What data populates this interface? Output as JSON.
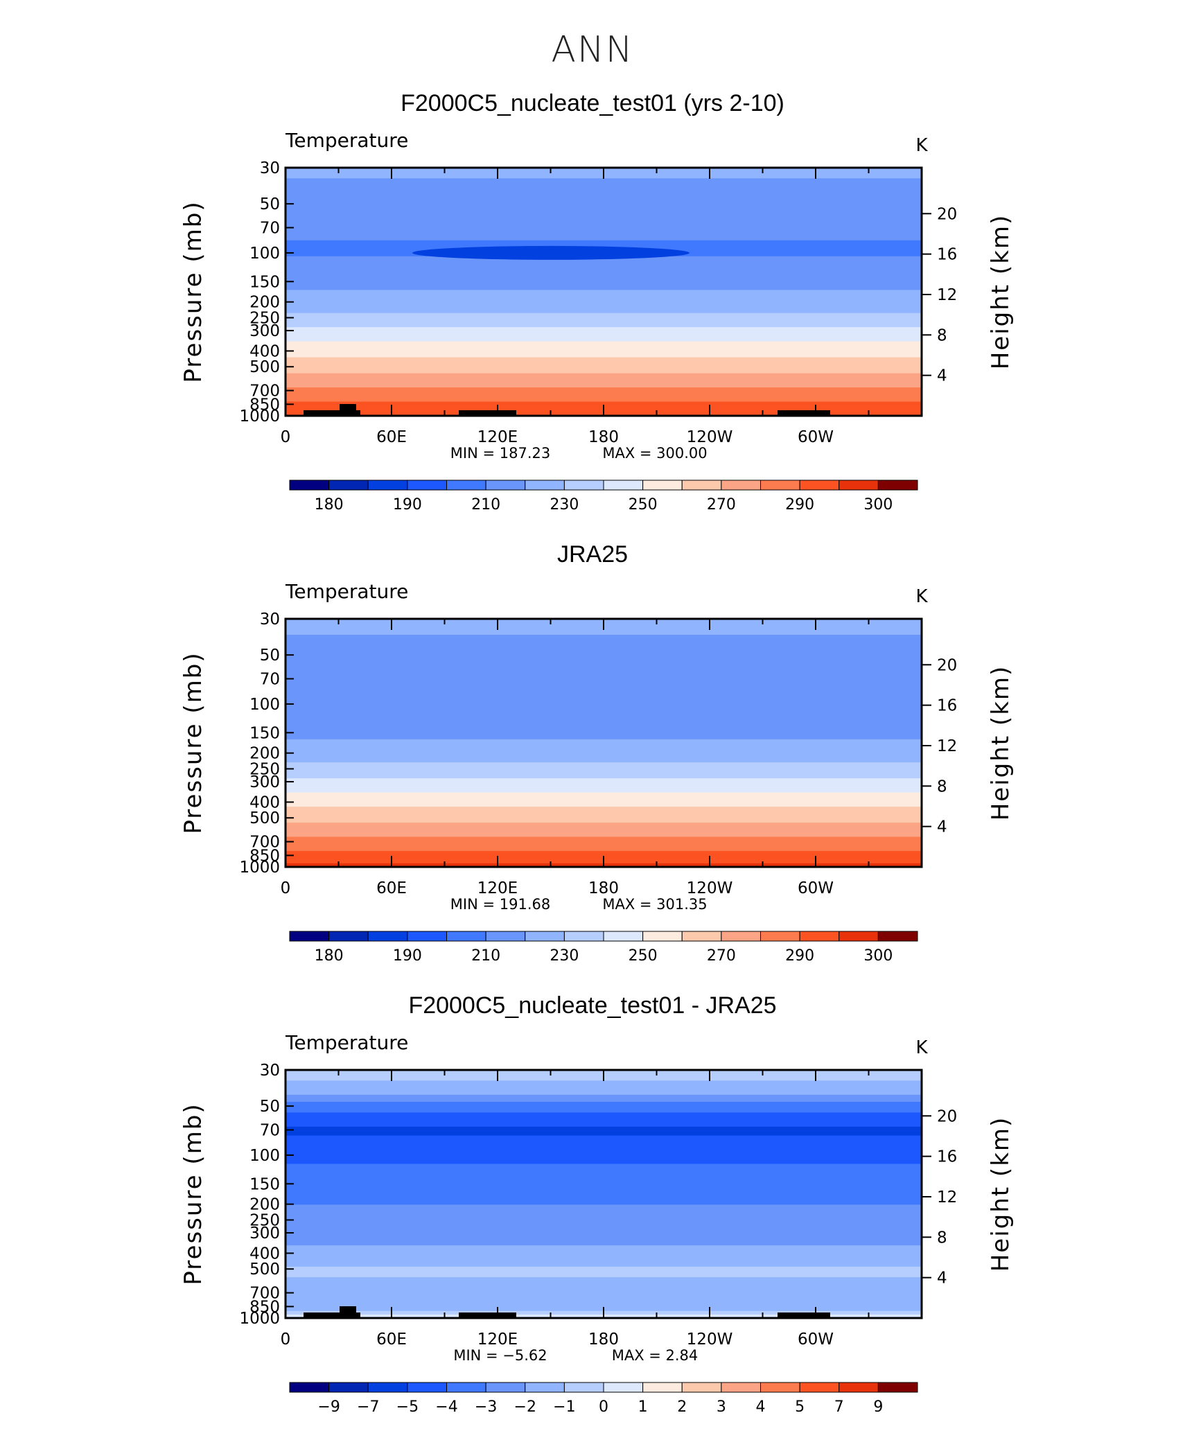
{
  "figure": {
    "title": "ANN"
  },
  "colors": [
    "#000080",
    "#0026b3",
    "#0340e0",
    "#1c58fe",
    "#4078fe",
    "#6a96fc",
    "#91b4fe",
    "#b5cefd",
    "#dde8fd",
    "#fdebdf",
    "#fdc9ad",
    "#fca586",
    "#fd7c4f",
    "#fc5323",
    "#e8320c",
    "#c61e06",
    "#a00d02",
    "#7f0000"
  ],
  "chart_data": [
    {
      "type": "heatmap",
      "title": "F2000C5_nucleate_test01 (yrs 2-10)",
      "variable": "Temperature",
      "units": "K",
      "ylabel": "Pressure (mb)",
      "y2label": "Height (km)",
      "y_ticks": [
        "30",
        "50",
        "70",
        "100",
        "150",
        "200",
        "250",
        "300",
        "400",
        "500",
        "700",
        "850",
        "1000"
      ],
      "y2_ticks": [
        "20",
        "16",
        "12",
        "8",
        "4"
      ],
      "x_ticks": [
        "0",
        "60E",
        "120E",
        "180",
        "120W",
        "60W"
      ],
      "min_label": "MIN = 187.23",
      "max_label": "MAX = 300.00",
      "min": 187.23,
      "max": 300.0,
      "colorbar_labels": [
        "180",
        "190",
        "210",
        "230",
        "250",
        "270",
        "290",
        "300"
      ],
      "levels": [
        {
          "p": 30,
          "v": 212
        },
        {
          "p": 40,
          "v": 208
        },
        {
          "p": 60,
          "v": 202
        },
        {
          "p": 100,
          "v": 199
        },
        {
          "p": 150,
          "v": 207
        },
        {
          "p": 200,
          "v": 214
        },
        {
          "p": 250,
          "v": 222
        },
        {
          "p": 300,
          "v": 232
        },
        {
          "p": 400,
          "v": 246
        },
        {
          "p": 500,
          "v": 256
        },
        {
          "p": 700,
          "v": 272
        },
        {
          "p": 850,
          "v": 282
        },
        {
          "p": 1000,
          "v": 290
        }
      ]
    },
    {
      "type": "heatmap",
      "title": "JRA25",
      "variable": "Temperature",
      "units": "K",
      "ylabel": "Pressure (mb)",
      "y2label": "Height (km)",
      "y_ticks": [
        "30",
        "50",
        "70",
        "100",
        "150",
        "200",
        "250",
        "300",
        "400",
        "500",
        "700",
        "850",
        "1000"
      ],
      "y2_ticks": [
        "20",
        "16",
        "12",
        "8",
        "4"
      ],
      "x_ticks": [
        "0",
        "60E",
        "120E",
        "180",
        "120W",
        "60W"
      ],
      "min_label": "MIN = 191.68",
      "max_label": "MAX = 301.35",
      "min": 191.68,
      "max": 301.35,
      "colorbar_labels": [
        "180",
        "190",
        "210",
        "230",
        "250",
        "270",
        "290",
        "300"
      ],
      "levels": [
        {
          "p": 30,
          "v": 214
        },
        {
          "p": 40,
          "v": 209
        },
        {
          "p": 60,
          "v": 204
        },
        {
          "p": 100,
          "v": 201
        },
        {
          "p": 150,
          "v": 208
        },
        {
          "p": 200,
          "v": 215
        },
        {
          "p": 250,
          "v": 223
        },
        {
          "p": 300,
          "v": 233
        },
        {
          "p": 400,
          "v": 247
        },
        {
          "p": 500,
          "v": 257
        },
        {
          "p": 700,
          "v": 273
        },
        {
          "p": 850,
          "v": 284
        },
        {
          "p": 1000,
          "v": 292
        }
      ]
    },
    {
      "type": "heatmap",
      "title": "F2000C5_nucleate_test01 - JRA25",
      "variable": "Temperature",
      "units": "K",
      "ylabel": "Pressure (mb)",
      "y2label": "Height (km)",
      "y_ticks": [
        "30",
        "50",
        "70",
        "100",
        "150",
        "200",
        "250",
        "300",
        "400",
        "500",
        "700",
        "850",
        "1000"
      ],
      "y2_ticks": [
        "20",
        "16",
        "12",
        "8",
        "4"
      ],
      "x_ticks": [
        "0",
        "60E",
        "120E",
        "180",
        "120W",
        "60W"
      ],
      "min_label": "MIN = −5.62",
      "max_label": "MAX = 2.84",
      "min": -5.62,
      "max": 2.84,
      "colorbar_labels": [
        "−9",
        "−7",
        "−5",
        "−4",
        "−3",
        "−2",
        "−1",
        "0",
        "1",
        "2",
        "3",
        "4",
        "5",
        "7",
        "9"
      ],
      "levels": [
        {
          "p": 30,
          "v": -0.5
        },
        {
          "p": 40,
          "v": -1.5
        },
        {
          "p": 50,
          "v": -3.5
        },
        {
          "p": 70,
          "v": -5.2
        },
        {
          "p": 100,
          "v": -4.2
        },
        {
          "p": 150,
          "v": -3.5
        },
        {
          "p": 200,
          "v": -3.0
        },
        {
          "p": 300,
          "v": -2.3
        },
        {
          "p": 400,
          "v": -1.8
        },
        {
          "p": 500,
          "v": -0.8
        },
        {
          "p": 700,
          "v": -1.4
        },
        {
          "p": 850,
          "v": -1.8
        },
        {
          "p": 1000,
          "v": 0.6
        }
      ]
    }
  ]
}
